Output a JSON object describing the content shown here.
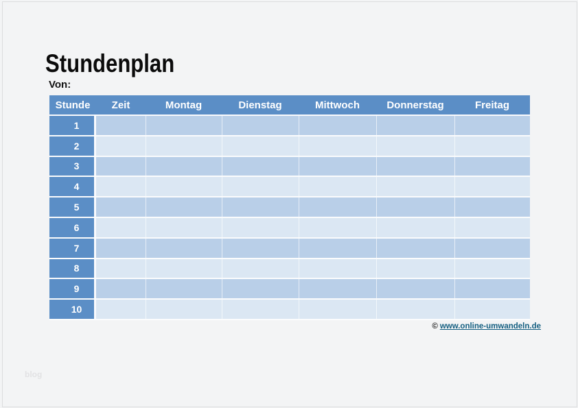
{
  "page": {
    "title": "Stundenplan",
    "von_label": "Von:",
    "watermark_blog": "blog",
    "footer": {
      "copyright_symbol": "©",
      "link_text": "www.online-umwandeln.de"
    }
  },
  "table": {
    "columns": [
      "Stunde",
      "Zeit",
      "Montag",
      "Dienstag",
      "Mittwoch",
      "Donnerstag",
      "Freitag"
    ],
    "rows": [
      {
        "label": "1",
        "cells": [
          "",
          "",
          "",
          "",
          "",
          ""
        ]
      },
      {
        "label": "2",
        "cells": [
          "",
          "",
          "",
          "",
          "",
          ""
        ]
      },
      {
        "label": "3",
        "cells": [
          "",
          "",
          "",
          "",
          "",
          ""
        ]
      },
      {
        "label": "4",
        "cells": [
          "",
          "",
          "",
          "",
          "",
          ""
        ]
      },
      {
        "label": "5",
        "cells": [
          "",
          "",
          "",
          "",
          "",
          ""
        ]
      },
      {
        "label": "6",
        "cells": [
          "",
          "",
          "",
          "",
          "",
          ""
        ]
      },
      {
        "label": "7",
        "cells": [
          "",
          "",
          "",
          "",
          "",
          ""
        ]
      },
      {
        "label": "8",
        "cells": [
          "",
          "",
          "",
          "",
          "",
          ""
        ]
      },
      {
        "label": "9",
        "cells": [
          "",
          "",
          "",
          "",
          "",
          ""
        ]
      },
      {
        "label": "10",
        "cells": [
          "",
          "",
          "",
          "",
          "",
          ""
        ]
      }
    ]
  },
  "colors": {
    "header_blue": "#5b8ec6",
    "row_odd": "#b9cfe8",
    "row_even": "#dbe7f3",
    "link_color": "#135e80"
  }
}
